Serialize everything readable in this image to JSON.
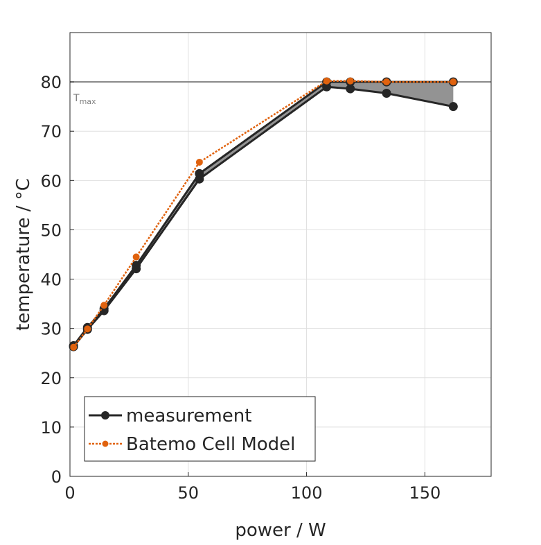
{
  "chart_data": {
    "type": "line",
    "title": "",
    "xlabel": "power / W",
    "ylabel": "temperature / °C",
    "xlim": [
      0,
      178
    ],
    "ylim": [
      0,
      90
    ],
    "xticks": [
      0,
      50,
      100,
      150
    ],
    "yticks": [
      0,
      10,
      20,
      30,
      40,
      50,
      60,
      70,
      80
    ],
    "grid": true,
    "legend_position": "bottom-left",
    "reference_line": {
      "y": 80,
      "label": "T",
      "label_sub": "max",
      "color": "#808080"
    },
    "x": [
      1.5,
      7.4,
      14.4,
      28,
      54.7,
      108.5,
      118.5,
      133.8,
      162
    ],
    "series": [
      {
        "name": "measurement",
        "color": "#262626",
        "style": "solid-marker",
        "lower": [
          26.3,
          29.8,
          33.6,
          42.1,
          60.3,
          79.0,
          78.6,
          77.7,
          75.0
        ],
        "upper": [
          26.5,
          30.2,
          34.0,
          42.8,
          61.4,
          80.0,
          80.0,
          80.0,
          80.0
        ],
        "band_color": "#939393"
      },
      {
        "name": "Batemo Cell Model",
        "color": "#E0620E",
        "style": "dotted-marker",
        "values": [
          26.2,
          29.9,
          34.7,
          44.5,
          63.7,
          80.2,
          80.2,
          80.0,
          80.0
        ]
      }
    ]
  }
}
